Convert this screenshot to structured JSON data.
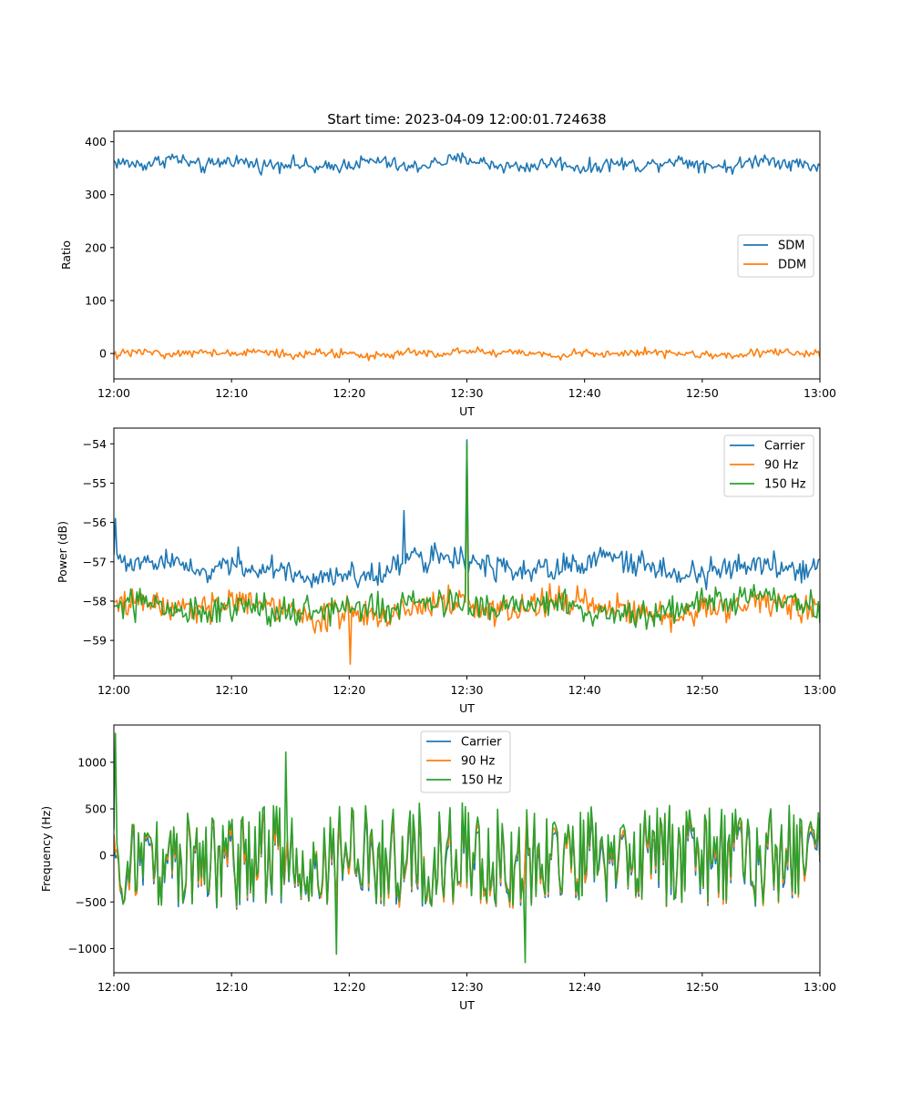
{
  "figure": {
    "title": "Start time: 2023-04-09 12:00:01.724638"
  },
  "chart_data": [
    {
      "type": "line",
      "title": "Start time: 2023-04-09 12:00:01.724638",
      "xlabel": "UT",
      "ylabel": "Ratio",
      "x_range": [
        "12:00",
        "13:00"
      ],
      "x_ticks": [
        "12:00",
        "12:10",
        "12:20",
        "12:30",
        "12:40",
        "12:50",
        "13:00"
      ],
      "ylim": [
        -48,
        420
      ],
      "y_ticks": [
        0,
        100,
        200,
        300,
        400
      ],
      "grid": false,
      "legend_position": "center-right",
      "x_sample_minutes": [
        0,
        2.5,
        5,
        7.5,
        10,
        12.5,
        15,
        17.5,
        20,
        22.5,
        25,
        27.5,
        30,
        32.5,
        35,
        37.5,
        40,
        42.5,
        45,
        47.5,
        50,
        52.5,
        55,
        57.5,
        60
      ],
      "series": [
        {
          "name": "SDM",
          "color": "#1f77b4",
          "values": [
            362,
            356,
            370,
            352,
            366,
            355,
            360,
            348,
            358,
            364,
            350,
            361,
            368,
            355,
            352,
            362,
            349,
            360,
            354,
            366,
            358,
            352,
            368,
            360,
            353
          ],
          "noise_amplitude": 20
        },
        {
          "name": "DDM",
          "color": "#ff7f0e",
          "values": [
            -2,
            4,
            -3,
            5,
            -1,
            3,
            -4,
            2,
            0,
            -5,
            4,
            -2,
            6,
            -1,
            3,
            -6,
            2,
            -3,
            4,
            0,
            -2,
            -5,
            3,
            1,
            -3
          ],
          "noise_amplitude": 12
        }
      ]
    },
    {
      "type": "line",
      "title": "",
      "xlabel": "UT",
      "ylabel": "Power (dB)",
      "x_range": [
        "12:00",
        "13:00"
      ],
      "x_ticks": [
        "12:00",
        "12:10",
        "12:20",
        "12:30",
        "12:40",
        "12:50",
        "13:00"
      ],
      "ylim": [
        -59.9,
        -53.6
      ],
      "y_ticks": [
        -59,
        -58,
        -57,
        -56,
        -55,
        -54
      ],
      "grid": false,
      "legend_position": "top-right",
      "x_sample_minutes": [
        0,
        2.5,
        5,
        7.5,
        10,
        12.5,
        15,
        17.5,
        20,
        22.5,
        25,
        27.5,
        30,
        32.5,
        35,
        37.5,
        40,
        42.5,
        45,
        47.5,
        50,
        52.5,
        55,
        57.5,
        60
      ],
      "series": [
        {
          "name": "Carrier",
          "color": "#1f77b4",
          "values": [
            -57.0,
            -57.1,
            -56.9,
            -57.3,
            -57.0,
            -57.2,
            -57.3,
            -57.4,
            -57.3,
            -57.4,
            -56.8,
            -56.9,
            -57.0,
            -57.2,
            -57.3,
            -57.2,
            -57.0,
            -56.9,
            -57.1,
            -57.2,
            -57.3,
            -57.1,
            -57.0,
            -57.2,
            -57.1
          ],
          "noise_amplitude": 0.5,
          "spikes": [
            {
              "x_minutes": 30.0,
              "value": -53.9
            },
            {
              "x_minutes": 24.6,
              "value": -55.7
            },
            {
              "x_minutes": 0.1,
              "value": -55.9
            }
          ]
        },
        {
          "name": "90 Hz",
          "color": "#ff7f0e",
          "values": [
            -58.1,
            -58.0,
            -58.2,
            -58.3,
            -58.0,
            -58.1,
            -58.3,
            -58.4,
            -58.3,
            -58.4,
            -58.2,
            -58.0,
            -58.1,
            -58.2,
            -58.2,
            -58.0,
            -58.1,
            -58.2,
            -58.3,
            -58.4,
            -58.2,
            -58.1,
            -58.0,
            -58.2,
            -58.1
          ],
          "noise_amplitude": 0.55,
          "spikes": [
            {
              "x_minutes": 30.0,
              "value": -54.3
            },
            {
              "x_minutes": 20.1,
              "value": -59.6
            }
          ]
        },
        {
          "name": "150 Hz",
          "color": "#2ca02c",
          "values": [
            -58.1,
            -58.0,
            -58.2,
            -58.3,
            -58.1,
            -58.2,
            -58.3,
            -58.3,
            -58.2,
            -58.2,
            -58.0,
            -58.0,
            -58.2,
            -58.3,
            -58.1,
            -58.0,
            -58.2,
            -58.3,
            -58.3,
            -58.2,
            -58.0,
            -58.0,
            -57.8,
            -58.0,
            -58.2
          ],
          "noise_amplitude": 0.55,
          "spikes": [
            {
              "x_minutes": 30.0,
              "value": -54.0
            }
          ]
        }
      ]
    },
    {
      "type": "line",
      "title": "",
      "xlabel": "UT",
      "ylabel": "Frequency (Hz)",
      "x_range": [
        "12:00",
        "13:00"
      ],
      "x_ticks": [
        "12:00",
        "12:10",
        "12:20",
        "12:30",
        "12:40",
        "12:50",
        "13:00"
      ],
      "ylim": [
        -1260,
        1400
      ],
      "y_ticks": [
        -1000,
        -500,
        0,
        500,
        1000
      ],
      "grid": false,
      "legend_position": "top-center",
      "x_sample_minutes": [
        0,
        2.5,
        5,
        7.5,
        10,
        12.5,
        15,
        17.5,
        20,
        22.5,
        25,
        27.5,
        30,
        32.5,
        35,
        37.5,
        40,
        42.5,
        45,
        47.5,
        50,
        52.5,
        55,
        57.5,
        60
      ],
      "series": [
        {
          "name": "Carrier",
          "color": "#1f77b4",
          "values": [
            -50,
            30,
            -20,
            10,
            -40,
            20,
            0,
            -30,
            40,
            -10,
            20,
            -20,
            10,
            -30,
            0,
            30,
            -20,
            10,
            -10,
            20,
            -30,
            10,
            0,
            -20,
            -60
          ],
          "noise_amplitude": 480,
          "offset": -60
        },
        {
          "name": "90 Hz",
          "color": "#ff7f0e",
          "values": [
            -50,
            30,
            -20,
            10,
            -40,
            20,
            0,
            -30,
            40,
            -10,
            20,
            -20,
            10,
            -30,
            0,
            30,
            -20,
            10,
            -10,
            20,
            -30,
            10,
            0,
            -20,
            -60
          ],
          "noise_amplitude": 480,
          "offset": -30
        },
        {
          "name": "150 Hz",
          "color": "#2ca02c",
          "values": [
            -50,
            30,
            -20,
            10,
            -40,
            20,
            0,
            -30,
            40,
            -10,
            20,
            -20,
            10,
            -30,
            0,
            30,
            -20,
            10,
            -10,
            20,
            -30,
            10,
            0,
            -20,
            -60
          ],
          "noise_amplitude": 480,
          "offset": 0,
          "spikes": [
            {
              "x_minutes": 0.1,
              "value": 1310
            },
            {
              "x_minutes": 14.6,
              "value": 1110
            },
            {
              "x_minutes": 35.0,
              "value": -1150
            },
            {
              "x_minutes": 18.9,
              "value": -1060
            }
          ]
        }
      ]
    }
  ]
}
